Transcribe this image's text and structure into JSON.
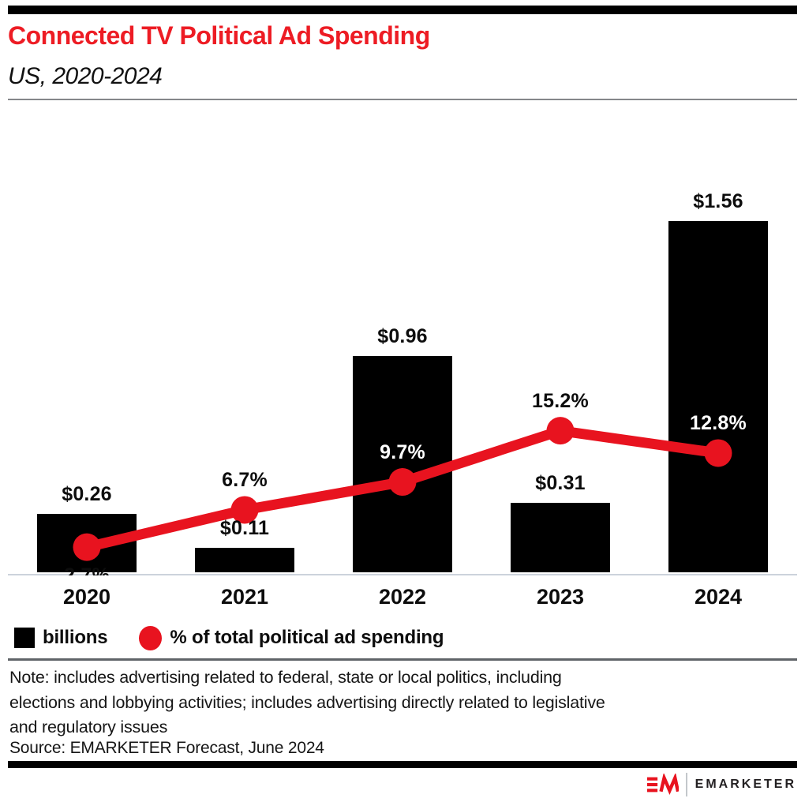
{
  "header": {
    "title": "Connected TV Political Ad Spending",
    "subtitle": "US, 2020-2024"
  },
  "colors": {
    "title_red": "#ed1c24",
    "accent_red": "#e8131f",
    "bar_black": "#000000",
    "axis_line": "#ccd3dc",
    "divider_top": "#85878a",
    "divider_bottom": "#606468"
  },
  "chart_data": {
    "type": "bar",
    "subtype": "combo-bar-line",
    "title": "Connected TV Political Ad Spending",
    "subtitle": "US, 2020-2024",
    "categories": [
      "2020",
      "2021",
      "2022",
      "2023",
      "2024"
    ],
    "series": [
      {
        "name": "billions",
        "type": "bar",
        "unit": "USD billions",
        "values": [
          0.26,
          0.11,
          0.96,
          0.31,
          1.56
        ],
        "labels": [
          "$0.26",
          "$0.11",
          "$0.96",
          "$0.31",
          "$1.56"
        ]
      },
      {
        "name": "% of total political ad spending",
        "type": "line",
        "unit": "percent",
        "values": [
          2.7,
          6.7,
          9.7,
          15.2,
          12.8
        ],
        "labels": [
          "2.7%",
          "6.7%",
          "9.7%",
          "15.2%",
          "12.8%"
        ]
      }
    ],
    "grid": false,
    "legend_position": "bottom-left",
    "notes": "2020 percent label is mostly hidden behind the 2020 bar; percent labels on 2022 and 2024 bars are white"
  },
  "legend": {
    "items": [
      {
        "label": "billions",
        "marker": "black-square"
      },
      {
        "label": "% of total political ad spending",
        "marker": "red-dot"
      }
    ]
  },
  "footnotes": {
    "note": "Note: includes advertising related to federal, state or local politics, including\nelections and lobbying activities; includes advertising directly related to legislative\nand regulatory issues",
    "source": "Source: EMARKETER Forecast, June 2024"
  },
  "branding": {
    "logo_monogram": "EM-monogram",
    "logo_text": "EMARKETER"
  }
}
